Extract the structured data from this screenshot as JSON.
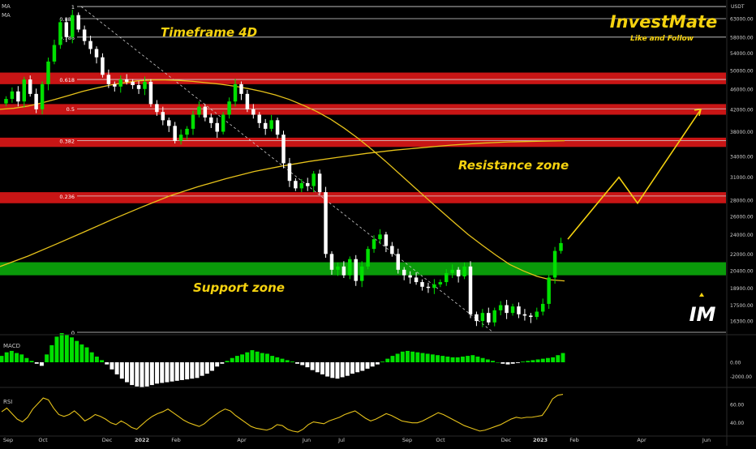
{
  "header": {
    "indicators": [
      "MA",
      "MA"
    ],
    "brand_title": "InvestMate",
    "brand_subtitle": "Like and Follow",
    "brand_logo": "IM"
  },
  "colors": {
    "bull": "#00e000",
    "bear": "#ffffff",
    "ma_fast": "#e6c21a",
    "ma_slow": "#e6c21a",
    "resistance_band": "#c81515",
    "support_band": "#0a9a0a",
    "annotation": "#f5d20f",
    "projection": "#f5d20f",
    "macd_pos": "#00e000",
    "macd_neg": "#ffffff",
    "rsi_line": "#e6c21a"
  },
  "chart_data": [
    {
      "type": "line",
      "panel": "price",
      "quote_unit": "USDT",
      "y_scale": "log",
      "ylim": [
        15500,
        67000
      ],
      "y_ticks": [
        "63000.00",
        "58000.00",
        "54000.00",
        "50000.00",
        "46000.00",
        "42000.00",
        "38000.00",
        "34000.00",
        "31000.00",
        "28000.00",
        "26000.00",
        "24000.00",
        "22000.00",
        "20400.00",
        "18900.00",
        "17500.00",
        "16300.00"
      ],
      "x_labels": [
        "Sep",
        "Oct",
        "Dec",
        "2022",
        "Feb",
        "Apr",
        "Jun",
        "Jul",
        "Sep",
        "Oct",
        "Dec",
        "2023",
        "Feb",
        "Apr",
        "Jun"
      ],
      "candle_close_series": [
        44000,
        45500,
        43500,
        48000,
        45000,
        42000,
        47000,
        52000,
        56000,
        62000,
        58000,
        64000,
        60000,
        57000,
        55000,
        53000,
        49000,
        47000,
        46500,
        48000,
        47500,
        46800,
        46000,
        47500,
        43000,
        41500,
        40000,
        39000,
        36500,
        37500,
        38500,
        41000,
        42500,
        40500,
        39500,
        38000,
        41000,
        43500,
        47000,
        45000,
        42000,
        41000,
        39500,
        38500,
        40000,
        37500,
        33000,
        30500,
        29500,
        30200,
        29800,
        31500,
        29000,
        22000,
        20500,
        20800,
        20000,
        21500,
        19500,
        20800,
        22500,
        23500,
        24000,
        22800,
        22000,
        20500,
        20000,
        19800,
        19400,
        19000,
        18900,
        19200,
        19400,
        20200,
        20500,
        19900,
        20800,
        16800,
        16300,
        16900,
        16200,
        17100,
        17500,
        16900,
        17400,
        16800,
        16700,
        16600,
        17000,
        17600,
        19800,
        22300,
        23100
      ],
      "series": [
        {
          "name": "MA",
          "kind": "fast",
          "values": [
            42000,
            42200,
            42600,
            43200,
            43900,
            44700,
            45500,
            46200,
            46800,
            47300,
            47700,
            47900,
            47900,
            47800,
            47600,
            47300,
            47000,
            46600,
            46100,
            45500,
            44800,
            43900,
            42800,
            41600,
            40200,
            38600,
            36900,
            35100,
            33300,
            31500,
            29800,
            28200,
            26700,
            25300,
            24000,
            22900,
            21900,
            21000,
            20400,
            19900,
            19600,
            19500
          ]
        },
        {
          "name": "MA",
          "kind": "slow",
          "values": [
            20800,
            21800,
            23000,
            24300,
            25700,
            27100,
            28500,
            29700,
            30800,
            31800,
            32600,
            33300,
            33900,
            34500,
            35000,
            35400,
            35800,
            36100,
            36300,
            36400,
            36500
          ]
        }
      ],
      "fib_levels": [
        {
          "ratio": "1",
          "price": 66500
        },
        {
          "ratio": "0.886",
          "price": 63000
        },
        {
          "ratio": "0.786",
          "price": 58000
        },
        {
          "ratio": "0.618",
          "price": 48000
        },
        {
          "ratio": "0.5",
          "price": 42100
        },
        {
          "ratio": "0.382",
          "price": 36500
        },
        {
          "ratio": "0.236",
          "price": 28500
        },
        {
          "ratio": "0",
          "price": 15500
        }
      ],
      "zones": [
        {
          "kind": "resistance",
          "top": 49500,
          "bottom": 47000
        },
        {
          "kind": "resistance",
          "top": 43000,
          "bottom": 41000
        },
        {
          "kind": "resistance",
          "top": 37000,
          "bottom": 35500
        },
        {
          "kind": "resistance",
          "top": 29000,
          "bottom": 27600
        },
        {
          "kind": "support",
          "top": 21200,
          "bottom": 20000
        }
      ],
      "projection_path": [
        23500,
        31000,
        27600,
        42000
      ],
      "annotations": {
        "timeframe": "Timeframe 4D",
        "resistance": "Resistance zone",
        "support": "Support zone"
      }
    },
    {
      "type": "bar",
      "panel": "macd",
      "title": "MACD",
      "y_ticks": [
        "0.00",
        "-2000.00"
      ],
      "values": [
        900,
        1400,
        1600,
        1300,
        1100,
        600,
        200,
        -200,
        -500,
        1100,
        2400,
        3600,
        4100,
        3900,
        3500,
        3000,
        2500,
        2100,
        1400,
        800,
        300,
        -300,
        -1000,
        -1700,
        -2300,
        -2800,
        -3200,
        -3400,
        -3500,
        -3400,
        -3200,
        -3000,
        -2900,
        -2800,
        -2700,
        -2600,
        -2500,
        -2400,
        -2300,
        -2200,
        -1900,
        -1600,
        -1200,
        -600,
        -200,
        200,
        600,
        900,
        1100,
        1400,
        1700,
        1500,
        1300,
        1200,
        900,
        700,
        500,
        300,
        100,
        -200,
        -400,
        -700,
        -1100,
        -1400,
        -1700,
        -2000,
        -2200,
        -2300,
        -2100,
        -1900,
        -1600,
        -1400,
        -1200,
        -900,
        -600,
        -300,
        100,
        500,
        900,
        1200,
        1500,
        1600,
        1500,
        1400,
        1300,
        1200,
        1100,
        1000,
        900,
        800,
        700,
        700,
        800,
        900,
        1000,
        800,
        600,
        400,
        200,
        0,
        -200,
        -300,
        -200,
        -100,
        100,
        200,
        300,
        400,
        500,
        600,
        700,
        1000,
        1300
      ]
    },
    {
      "type": "line",
      "panel": "rsi",
      "title": "RSI",
      "y_ticks": [
        "60.00",
        "40.00"
      ],
      "values": [
        52,
        56,
        50,
        44,
        41,
        46,
        55,
        61,
        67,
        65,
        56,
        49,
        47,
        49,
        53,
        48,
        42,
        45,
        49,
        47,
        44,
        40,
        38,
        42,
        39,
        35,
        33,
        38,
        43,
        47,
        50,
        52,
        55,
        51,
        47,
        43,
        40,
        38,
        36,
        39,
        44,
        48,
        52,
        55,
        53,
        48,
        44,
        40,
        36,
        34,
        33,
        32,
        34,
        38,
        37,
        33,
        31,
        30,
        33,
        38,
        41,
        40,
        39,
        42,
        44,
        46,
        49,
        51,
        53,
        49,
        45,
        42,
        44,
        47,
        50,
        48,
        45,
        42,
        41,
        40,
        40,
        42,
        45,
        48,
        51,
        49,
        46,
        43,
        40,
        37,
        35,
        33,
        31,
        32,
        34,
        36,
        38,
        41,
        44,
        46,
        45,
        46,
        46,
        47,
        48,
        56,
        66,
        70,
        71
      ]
    }
  ]
}
